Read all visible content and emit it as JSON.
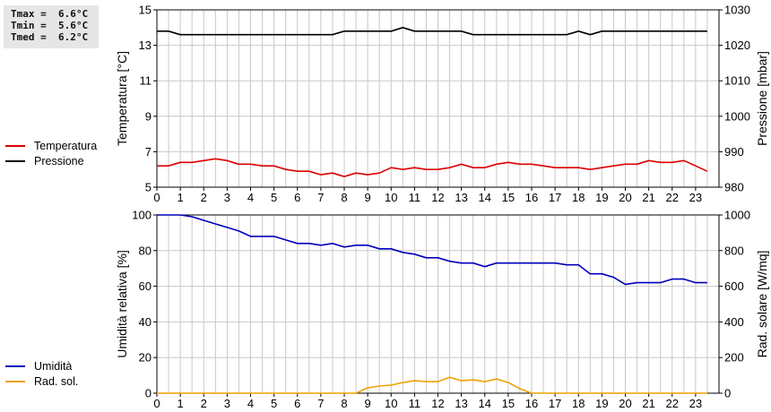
{
  "stats": {
    "tmax": "Tmax =  6.6°C",
    "tmin": "Tmin =  5.6°C",
    "tmed": "Tmed =  6.2°C"
  },
  "legend_top": [
    {
      "label": "Temperatura",
      "color": "#dd0000"
    },
    {
      "label": "Pressione",
      "color": "#000000"
    }
  ],
  "legend_bottom": [
    {
      "label": "Umidità",
      "color": "#0000bb"
    },
    {
      "label": "Rad. sol.",
      "color": "#f0a000"
    }
  ],
  "chart_data": [
    {
      "type": "line",
      "xlabel": "",
      "x_ticks": [
        "0",
        "1",
        "2",
        "3",
        "4",
        "5",
        "6",
        "7",
        "8",
        "9",
        "10",
        "11",
        "12",
        "13",
        "14",
        "15",
        "16",
        "17",
        "18",
        "19",
        "20",
        "21",
        "22",
        "23"
      ],
      "xlim": [
        0,
        24
      ],
      "ylabel_left": "Temperatura [°C]",
      "ylabel_right": "Pressione [mbar]",
      "ylim_left": [
        5,
        15
      ],
      "yticks_left": [
        "5",
        "7",
        "9",
        "11",
        "13",
        "15"
      ],
      "ylim_right": [
        980,
        1030
      ],
      "yticks_right": [
        "980",
        "990",
        "1000",
        "1010",
        "1020",
        "1030"
      ],
      "grid": true,
      "series": [
        {
          "name": "Temperatura",
          "axis": "left",
          "color": "#dd0000",
          "x": [
            0,
            0.5,
            1,
            1.5,
            2,
            2.5,
            3,
            3.5,
            4,
            4.5,
            5,
            5.5,
            6,
            6.5,
            7,
            7.5,
            8,
            8.5,
            9,
            9.5,
            10,
            10.5,
            11,
            11.5,
            12,
            12.5,
            13,
            13.5,
            14,
            14.5,
            15,
            15.5,
            16,
            16.5,
            17,
            17.5,
            18,
            18.5,
            19,
            19.5,
            20,
            20.5,
            21,
            21.5,
            22,
            22.5,
            23,
            23.5
          ],
          "y": [
            6.2,
            6.2,
            6.4,
            6.4,
            6.5,
            6.6,
            6.5,
            6.3,
            6.3,
            6.2,
            6.2,
            6.0,
            5.9,
            5.9,
            5.7,
            5.8,
            5.6,
            5.8,
            5.7,
            5.8,
            6.1,
            6.0,
            6.1,
            6.0,
            6.0,
            6.1,
            6.3,
            6.1,
            6.1,
            6.3,
            6.4,
            6.3,
            6.3,
            6.2,
            6.1,
            6.1,
            6.1,
            6.0,
            6.1,
            6.2,
            6.3,
            6.3,
            6.5,
            6.4,
            6.4,
            6.5,
            6.2,
            5.9
          ]
        },
        {
          "name": "Pressione",
          "axis": "right",
          "color": "#000000",
          "x": [
            0,
            0.5,
            1,
            1.5,
            2,
            2.5,
            3,
            3.5,
            4,
            4.5,
            5,
            5.5,
            6,
            6.5,
            7,
            7.5,
            8,
            8.5,
            9,
            9.5,
            10,
            10.5,
            11,
            11.5,
            12,
            12.5,
            13,
            13.5,
            14,
            14.5,
            15,
            15.5,
            16,
            16.5,
            17,
            17.5,
            18,
            18.5,
            19,
            19.5,
            20,
            20.5,
            21,
            21.5,
            22,
            22.5,
            23,
            23.5
          ],
          "y": [
            1024,
            1024,
            1023,
            1023,
            1023,
            1023,
            1023,
            1023,
            1023,
            1023,
            1023,
            1023,
            1023,
            1023,
            1023,
            1023,
            1024,
            1024,
            1024,
            1024,
            1024,
            1025,
            1024,
            1024,
            1024,
            1024,
            1024,
            1023,
            1023,
            1023,
            1023,
            1023,
            1023,
            1023,
            1023,
            1023,
            1024,
            1023,
            1024,
            1024,
            1024,
            1024,
            1024,
            1024,
            1024,
            1024,
            1024,
            1024
          ]
        }
      ]
    },
    {
      "type": "line",
      "xlabel": "",
      "x_ticks": [
        "0",
        "1",
        "2",
        "3",
        "4",
        "5",
        "6",
        "7",
        "8",
        "9",
        "10",
        "11",
        "12",
        "13",
        "14",
        "15",
        "16",
        "17",
        "18",
        "19",
        "20",
        "21",
        "22",
        "23"
      ],
      "xlim": [
        0,
        24
      ],
      "ylabel_left": "Umidità relativa [%]",
      "ylabel_right": "Rad. solare [W/mq]",
      "ylim_left": [
        0,
        100
      ],
      "yticks_left": [
        "0",
        "20",
        "40",
        "60",
        "80",
        "100"
      ],
      "ylim_right": [
        0,
        1000
      ],
      "yticks_right": [
        "0",
        "200",
        "400",
        "600",
        "800",
        "1000"
      ],
      "grid": true,
      "series": [
        {
          "name": "Umidità",
          "axis": "left",
          "color": "#0000bb",
          "x": [
            0,
            0.5,
            1,
            1.5,
            2,
            2.5,
            3,
            3.5,
            4,
            4.5,
            5,
            5.5,
            6,
            6.5,
            7,
            7.5,
            8,
            8.5,
            9,
            9.5,
            10,
            10.5,
            11,
            11.5,
            12,
            12.5,
            13,
            13.5,
            14,
            14.5,
            15,
            15.5,
            16,
            16.5,
            17,
            17.5,
            18,
            18.5,
            19,
            19.5,
            20,
            20.5,
            21,
            21.5,
            22,
            22.5,
            23,
            23.5
          ],
          "y": [
            100,
            100,
            100,
            99,
            97,
            95,
            93,
            91,
            88,
            88,
            88,
            86,
            84,
            84,
            83,
            84,
            82,
            83,
            83,
            81,
            81,
            79,
            78,
            76,
            76,
            74,
            73,
            73,
            71,
            73,
            73,
            73,
            73,
            73,
            73,
            72,
            72,
            67,
            67,
            65,
            61,
            62,
            62,
            62,
            64,
            64,
            62,
            62
          ]
        },
        {
          "name": "Rad. sol.",
          "axis": "right",
          "color": "#f0a000",
          "x": [
            0,
            0.5,
            1,
            1.5,
            2,
            2.5,
            3,
            3.5,
            4,
            4.5,
            5,
            5.5,
            6,
            6.5,
            7,
            7.5,
            8,
            8.5,
            9,
            9.5,
            10,
            10.5,
            11,
            11.5,
            12,
            12.5,
            13,
            13.5,
            14,
            14.5,
            15,
            15.5,
            16,
            16.5,
            17,
            17.5,
            18,
            18.5,
            19,
            19.5,
            20,
            20.5,
            21,
            21.5,
            22,
            22.5,
            23,
            23.5
          ],
          "y": [
            0,
            0,
            0,
            0,
            0,
            0,
            0,
            0,
            0,
            0,
            0,
            0,
            0,
            0,
            0,
            0,
            0,
            0,
            30,
            40,
            45,
            60,
            70,
            65,
            65,
            90,
            70,
            75,
            65,
            80,
            60,
            25,
            0,
            0,
            0,
            0,
            0,
            0,
            0,
            0,
            0,
            0,
            0,
            0,
            0,
            0,
            0,
            0
          ]
        }
      ]
    }
  ]
}
